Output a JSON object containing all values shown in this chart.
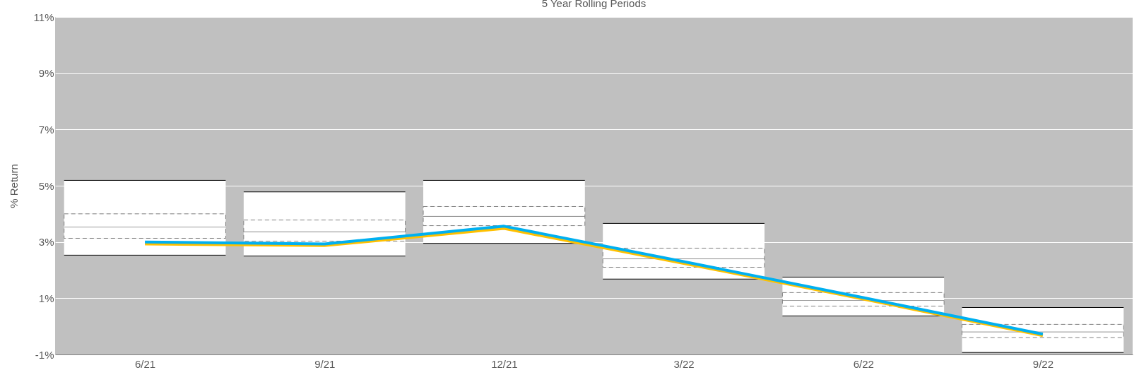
{
  "chart_data": {
    "type": "box",
    "title": "5 Year Rolling Periods",
    "ylabel": "% Return",
    "categories": [
      "6/21",
      "9/21",
      "12/21",
      "3/22",
      "6/22",
      "9/22"
    ],
    "boxes": [
      {
        "low": 2.53,
        "q1": 3.13,
        "median": 3.53,
        "q3": 4.0,
        "high": 5.19
      },
      {
        "low": 2.5,
        "q1": 3.03,
        "median": 3.36,
        "q3": 3.78,
        "high": 4.78
      },
      {
        "low": 2.95,
        "q1": 3.58,
        "median": 3.91,
        "q3": 4.26,
        "high": 5.19
      },
      {
        "low": 1.68,
        "q1": 2.1,
        "median": 2.4,
        "q3": 2.78,
        "high": 3.66
      },
      {
        "low": 0.37,
        "q1": 0.72,
        "median": 0.92,
        "q3": 1.2,
        "high": 1.75
      },
      {
        "low": -0.93,
        "q1": -0.4,
        "median": -0.2,
        "q3": 0.07,
        "high": 0.67
      }
    ],
    "series": [
      {
        "type": "line",
        "color": "#ffc000",
        "values": [
          2.93,
          2.87,
          3.48,
          2.24,
          0.97,
          -0.33
        ]
      },
      {
        "type": "line",
        "color": "#00b0f0",
        "values": [
          3.0,
          2.93,
          3.56,
          2.3,
          1.02,
          -0.28
        ]
      }
    ],
    "ylim": [
      -1,
      11
    ],
    "yticks": [
      {
        "value": -1,
        "label": "-1%"
      },
      {
        "value": 1,
        "label": "1%"
      },
      {
        "value": 3,
        "label": "3%"
      },
      {
        "value": 5,
        "label": "5%"
      },
      {
        "value": 7,
        "label": "7%"
      },
      {
        "value": 9,
        "label": "9%"
      },
      {
        "value": 11,
        "label": "11%"
      }
    ],
    "grid": "y"
  }
}
